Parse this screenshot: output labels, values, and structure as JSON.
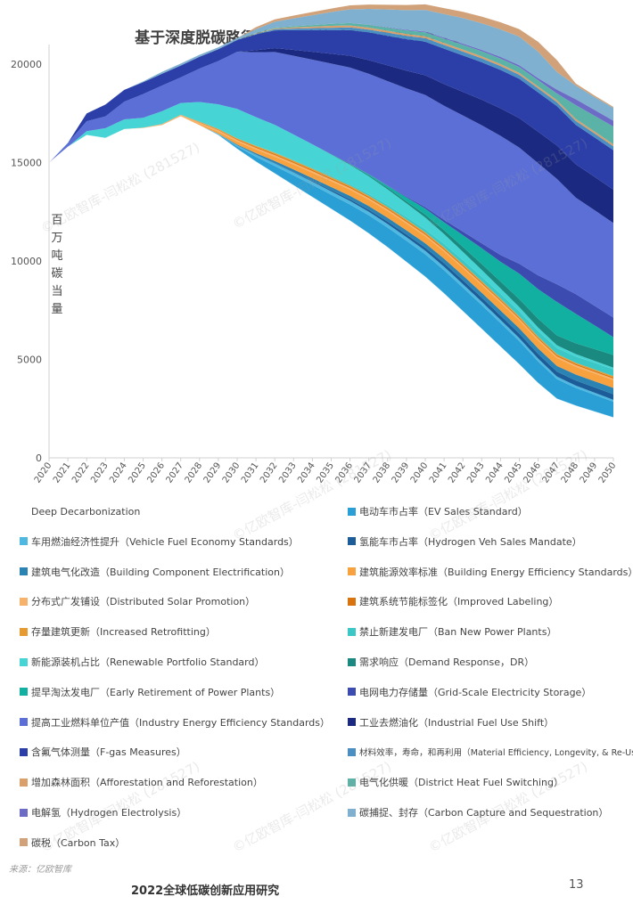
{
  "page": {
    "source": "来源：亿欧智库",
    "footer_title": "2022全球低碳创新应用研究",
    "page_number": "13",
    "watermark": "©亿欧智库-闫松松 (281527)"
  },
  "chart_data": {
    "type": "area",
    "title": "基于深度脱碳路径的中国政策减碳效应2020-2050年",
    "ylabel": "百万吨碳当量",
    "xlabel": "",
    "ylim": [
      0,
      21000
    ],
    "yticks": [
      0,
      5000,
      10000,
      15000,
      20000
    ],
    "x": [
      "2020",
      "2021",
      "2022",
      "2023",
      "2024",
      "2025",
      "2026",
      "2027",
      "2028",
      "2029",
      "2030",
      "2031",
      "2032",
      "2033",
      "2034",
      "2035",
      "2036",
      "2037",
      "2038",
      "2039",
      "2040",
      "2041",
      "2042",
      "2043",
      "2044",
      "2045",
      "2046",
      "2047",
      "2048",
      "2049",
      "2050"
    ],
    "grid": false,
    "legend_position": "bottom",
    "baseline": {
      "name": "Deep Decarbonization",
      "values": [
        15000,
        15800,
        16400,
        16250,
        16700,
        16750,
        16900,
        17350,
        16900,
        16400,
        15700,
        15050,
        14450,
        13850,
        13250,
        12650,
        12050,
        11400,
        10700,
        9950,
        9200,
        8350,
        7450,
        6550,
        5650,
        4750,
        3800,
        3000,
        2650,
        2350,
        2050
      ]
    },
    "series": [
      {
        "name": "电动车市占率（EV Sales Standard）",
        "color": "#2a9fd6",
        "values": [
          0,
          0,
          0,
          0,
          0,
          0,
          0,
          0,
          0,
          40,
          120,
          250,
          380,
          500,
          620,
          720,
          820,
          920,
          1000,
          1080,
          1140,
          1180,
          1200,
          1210,
          1200,
          1180,
          1100,
          1000,
          900,
          850,
          800
        ]
      },
      {
        "name": "车用燃油经济性提升（Vehicle Fuel Economy Standards）",
        "color": "#4fb8e0",
        "values": [
          0,
          0,
          0,
          0,
          0,
          0,
          0,
          0,
          0,
          20,
          60,
          100,
          130,
          150,
          160,
          170,
          180,
          180,
          180,
          180,
          180,
          180,
          175,
          170,
          160,
          150,
          140,
          130,
          120,
          110,
          100
        ]
      },
      {
        "name": "氢能车市占率（Hydrogen Veh Sales Mandate）",
        "color": "#1c5d99",
        "values": [
          0,
          0,
          0,
          0,
          0,
          0,
          0,
          0,
          0,
          0,
          0,
          10,
          20,
          30,
          40,
          60,
          80,
          100,
          120,
          140,
          160,
          180,
          200,
          210,
          220,
          230,
          240,
          250,
          260,
          270,
          280
        ]
      },
      {
        "name": "建筑电气化改造（Building Component Electrification）",
        "color": "#2b83b3",
        "values": [
          0,
          0,
          0,
          0,
          0,
          0,
          0,
          0,
          0,
          10,
          40,
          70,
          100,
          120,
          140,
          160,
          180,
          190,
          200,
          210,
          220,
          230,
          240,
          250,
          260,
          270,
          280,
          290,
          300,
          310,
          320
        ]
      },
      {
        "name": "建筑能源效率标准（Building Energy Efficiency Standards）",
        "color": "#f7a23e",
        "values": [
          0,
          0,
          0,
          0,
          0,
          0,
          0,
          0,
          60,
          100,
          150,
          190,
          220,
          250,
          280,
          300,
          320,
          330,
          340,
          350,
          360,
          370,
          380,
          390,
          400,
          400,
          400,
          400,
          400,
          400,
          400
        ]
      },
      {
        "name": "分布式广发铺设（Distributed Solar Promotion）",
        "color": "#f6b26b",
        "values": [
          0,
          0,
          0,
          0,
          0,
          30,
          60,
          80,
          80,
          80,
          80,
          80,
          80,
          80,
          80,
          80,
          80,
          80,
          80,
          80,
          80,
          80,
          80,
          80,
          80,
          80,
          80,
          80,
          80,
          80,
          80
        ]
      },
      {
        "name": "建筑系统节能标签化（Improved Labeling）",
        "color": "#d9730d",
        "values": [
          0,
          0,
          0,
          0,
          0,
          0,
          0,
          0,
          20,
          30,
          40,
          50,
          60,
          60,
          60,
          60,
          60,
          60,
          60,
          60,
          60,
          60,
          60,
          60,
          60,
          60,
          60,
          60,
          60,
          60,
          60
        ]
      },
      {
        "name": "存量建筑更新（Increased Retrofitting）",
        "color": "#e69b32",
        "values": [
          0,
          0,
          0,
          0,
          0,
          0,
          0,
          0,
          20,
          30,
          40,
          50,
          60,
          60,
          60,
          60,
          60,
          60,
          60,
          60,
          60,
          60,
          60,
          60,
          60,
          60,
          60,
          60,
          60,
          60,
          60
        ]
      },
      {
        "name": "禁止新建发电厂（Ban New Power Plants）",
        "color": "#3cc7c7",
        "values": [
          0,
          0,
          0,
          0,
          0,
          0,
          0,
          0,
          0,
          0,
          0,
          10,
          20,
          30,
          40,
          50,
          60,
          80,
          100,
          120,
          150,
          180,
          200,
          220,
          240,
          260,
          280,
          300,
          320,
          340,
          350
        ]
      },
      {
        "name": "新能源装机占比（Renewable Portfolio Standard）",
        "color": "#47d4d4",
        "values": [
          0,
          0,
          200,
          500,
          500,
          500,
          650,
          600,
          1000,
          1250,
          1500,
          1450,
          1400,
          1300,
          1200,
          1100,
          1000,
          900,
          800,
          700,
          600,
          500,
          420,
          350,
          280,
          220,
          180,
          150,
          120,
          100,
          80
        ]
      },
      {
        "name": "需求响应（Demand Response，DR）",
        "color": "#1a8a80",
        "values": [
          0,
          0,
          0,
          0,
          0,
          0,
          0,
          0,
          0,
          0,
          0,
          0,
          0,
          0,
          0,
          20,
          40,
          60,
          80,
          100,
          150,
          200,
          250,
          300,
          350,
          400,
          450,
          500,
          550,
          600,
          650
        ]
      },
      {
        "name": "提早淘汰发电厂（Early Retirement of Power Plants）",
        "color": "#12b0a0",
        "values": [
          0,
          0,
          0,
          0,
          0,
          0,
          0,
          0,
          0,
          0,
          0,
          0,
          0,
          0,
          0,
          0,
          0,
          50,
          100,
          200,
          300,
          400,
          600,
          800,
          1000,
          1300,
          1500,
          1700,
          1500,
          1200,
          900
        ]
      },
      {
        "name": "电网电力存储量（Grid-Scale Electricity Storage）",
        "color": "#3b4bb0",
        "values": [
          0,
          0,
          0,
          0,
          0,
          0,
          0,
          0,
          0,
          0,
          0,
          0,
          0,
          0,
          0,
          0,
          0,
          0,
          20,
          40,
          80,
          120,
          180,
          250,
          350,
          500,
          700,
          900,
          1000,
          1000,
          1000
        ]
      },
      {
        "name": "提高工业燃料单位产值（Industry Energy Efficiency Standards）",
        "color": "#5b6fd6",
        "values": [
          0,
          200,
          500,
          600,
          900,
          1200,
          1300,
          1300,
          1700,
          2200,
          2900,
          3300,
          3700,
          4000,
          4300,
          4600,
          4900,
          5100,
          5300,
          5500,
          5700,
          5800,
          5900,
          6000,
          6050,
          5900,
          5700,
          5350,
          4900,
          4850,
          4800
        ]
      },
      {
        "name": "工业去燃油化（Industrial Fuel Use Shift）",
        "color": "#1b2a80",
        "values": [
          0,
          0,
          0,
          0,
          0,
          0,
          0,
          0,
          0,
          0,
          0,
          100,
          200,
          300,
          400,
          500,
          600,
          700,
          800,
          900,
          1000,
          1100,
          1200,
          1300,
          1400,
          1500,
          1600,
          1700,
          1700,
          1700,
          1700
        ]
      },
      {
        "name": "含氟气体测量（F-gas Measures）",
        "color": "#2c3ea8",
        "values": [
          0,
          0,
          400,
          600,
          600,
          600,
          600,
          600,
          600,
          600,
          600,
          800,
          900,
          1000,
          1100,
          1200,
          1300,
          1400,
          1500,
          1600,
          1700,
          1800,
          1850,
          1900,
          1950,
          2000,
          2000,
          2000,
          2000,
          2000,
          2000
        ]
      },
      {
        "name": "材料效率，寿命，和再利用（Material Efficiency, Longevity, & Re-Use）",
        "color": "#4a8ec2",
        "values": [
          0,
          0,
          0,
          0,
          0,
          0,
          0,
          0,
          0,
          0,
          0,
          30,
          60,
          80,
          100,
          120,
          140,
          150,
          160,
          170,
          180,
          190,
          200,
          200,
          200,
          200,
          200,
          200,
          200,
          200,
          200
        ]
      },
      {
        "name": "增加森林面积（Afforestation and Reforestation）",
        "color": "#d9a06c",
        "values": [
          0,
          0,
          0,
          0,
          0,
          0,
          0,
          0,
          0,
          0,
          0,
          20,
          40,
          60,
          80,
          100,
          100,
          100,
          100,
          100,
          100,
          100,
          100,
          100,
          100,
          100,
          100,
          100,
          100,
          100,
          100
        ]
      },
      {
        "name": "电气化供暖（District Heat Fuel Switching）",
        "color": "#5bb3a8",
        "values": [
          0,
          0,
          0,
          0,
          0,
          0,
          0,
          0,
          0,
          0,
          0,
          20,
          40,
          60,
          80,
          100,
          120,
          140,
          160,
          180,
          200,
          220,
          240,
          260,
          280,
          300,
          320,
          340,
          700,
          800,
          900
        ]
      },
      {
        "name": "电解氢（Hydrogen Electrolysis）",
        "color": "#6c6cc6",
        "values": [
          0,
          0,
          0,
          0,
          0,
          0,
          0,
          0,
          0,
          0,
          0,
          0,
          0,
          0,
          0,
          0,
          0,
          10,
          20,
          30,
          40,
          50,
          60,
          70,
          80,
          90,
          100,
          200,
          300,
          300,
          300
        ]
      },
      {
        "name": "碳捕捉、封存（Carbon Capture and Sequestration）",
        "color": "#7fb0cf",
        "values": [
          0,
          0,
          0,
          0,
          0,
          50,
          100,
          100,
          100,
          100,
          100,
          200,
          300,
          400,
          500,
          600,
          700,
          800,
          900,
          1000,
          1100,
          1200,
          1300,
          1350,
          1400,
          1450,
          1350,
          900,
          700,
          650,
          650
        ]
      },
      {
        "name": "碳税（Carbon Tax）",
        "color": "#d1a27a",
        "values": [
          0,
          0,
          0,
          0,
          0,
          0,
          0,
          0,
          0,
          0,
          0,
          100,
          120,
          140,
          160,
          180,
          200,
          220,
          240,
          260,
          280,
          300,
          320,
          340,
          360,
          380,
          500,
          600,
          100,
          80,
          50
        ]
      }
    ]
  }
}
